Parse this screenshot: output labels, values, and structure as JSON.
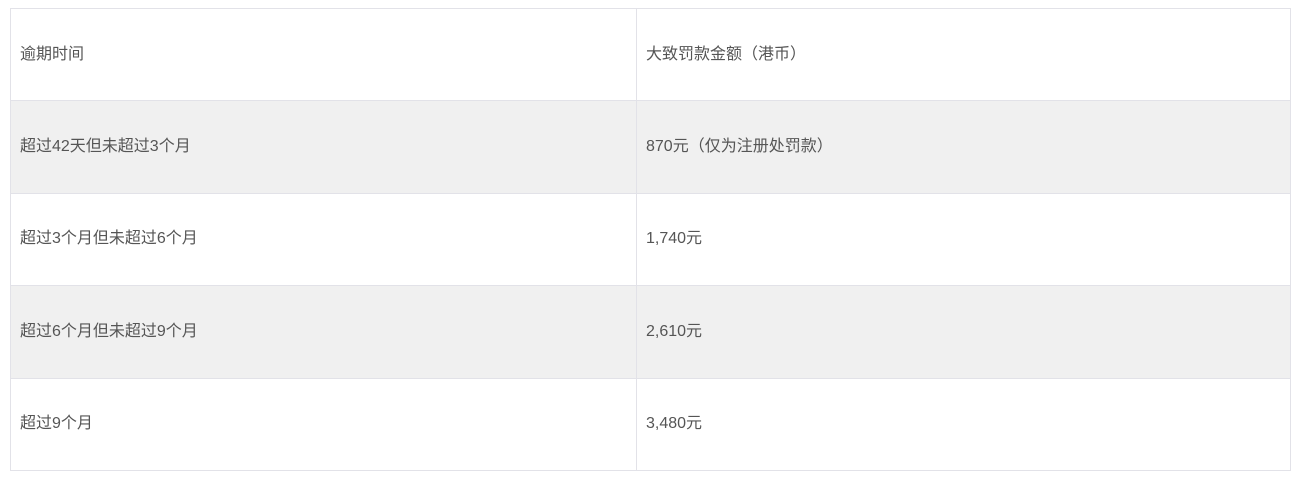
{
  "colors": {
    "page_background": "#ffffff",
    "alt_row_background": "#f0f0f0",
    "border": "#e2e2e8",
    "text": "#555555"
  },
  "table": {
    "headers": [
      {
        "label": "逾期时间"
      },
      {
        "label": "大致罚款金额（港币）"
      }
    ],
    "rows": [
      {
        "period": "超过42天但未超过3个月",
        "fine": "870元（仅为注册处罚款）"
      },
      {
        "period": "超过3个月但未超过6个月",
        "fine": "1,740元"
      },
      {
        "period": "超过6个月但未超过9个月",
        "fine": "2,610元"
      },
      {
        "period": "超过9个月",
        "fine": "3,480元"
      }
    ]
  },
  "chart_data": {
    "type": "table",
    "title": "",
    "columns": [
      "逾期时间",
      "大致罚款金额（港币）"
    ],
    "rows": [
      [
        "超过42天但未超过3个月",
        "870元（仅为注册处罚款）"
      ],
      [
        "超过3个月但未超过6个月",
        "1,740元"
      ],
      [
        "超过6个月但未超过9个月",
        "2,610元"
      ],
      [
        "超过9个月",
        "3,480元"
      ]
    ]
  }
}
